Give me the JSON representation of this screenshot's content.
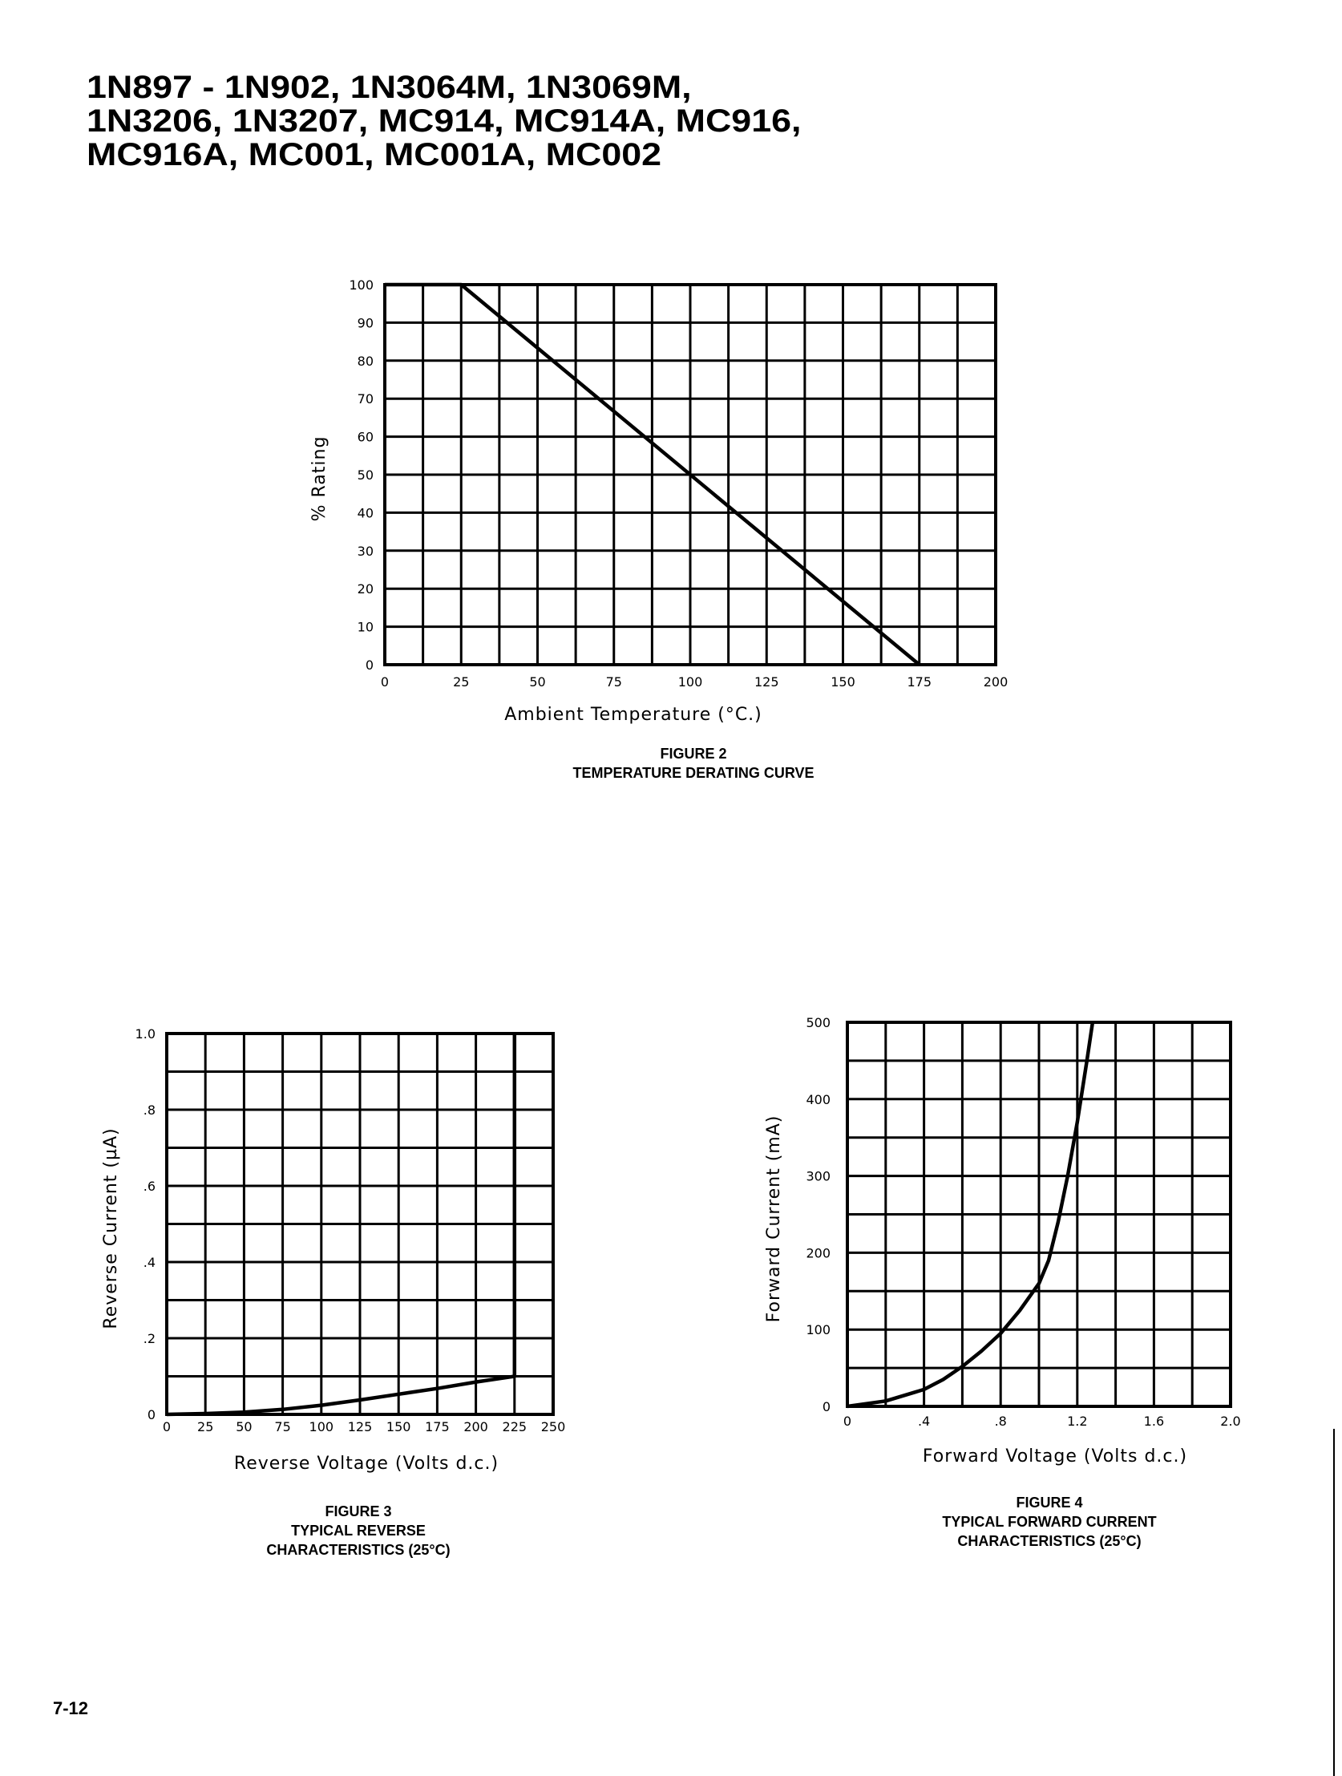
{
  "header": {
    "title_lines": [
      "1N897 - 1N902, 1N3064M, 1N3069M,",
      "1N3206, 1N3207, MC914, MC914A, MC916,",
      "MC916A, MC001, MC001A, MC002"
    ]
  },
  "figures": [
    {
      "figure_label": "FIGURE 2",
      "caption_lines": [
        "TEMPERATURE DERATING CURVE"
      ]
    },
    {
      "figure_label": "FIGURE 3",
      "caption_lines": [
        "TYPICAL REVERSE",
        "CHARACTERISTICS (25°C)"
      ]
    },
    {
      "figure_label": "FIGURE 4",
      "caption_lines": [
        "TYPICAL FORWARD CURRENT",
        "CHARACTERISTICS (25°C)"
      ]
    }
  ],
  "chart_data": [
    {
      "type": "line",
      "title": "TEMPERATURE DERATING CURVE",
      "xlabel": "Ambient Temperature (°C.)",
      "ylabel": "% Rating",
      "xlim": [
        0,
        200
      ],
      "ylim": [
        0,
        100
      ],
      "x_ticks": [
        0,
        25,
        50,
        75,
        100,
        125,
        150,
        175,
        200
      ],
      "x_tick_labels": [
        "0",
        "25",
        "50",
        "75",
        "100",
        "125",
        "150",
        "175",
        "200"
      ],
      "y_ticks": [
        0,
        10,
        20,
        30,
        40,
        50,
        60,
        70,
        80,
        90,
        100
      ],
      "y_tick_labels": [
        "0",
        "10",
        "20",
        "30",
        "40",
        "50",
        "60",
        "70",
        "80",
        "90",
        "100"
      ],
      "grid_x": 16,
      "grid_y": 10,
      "grid": true,
      "series": [
        {
          "name": "% Rating",
          "x": [
            0,
            25,
            175
          ],
          "y": [
            100,
            100,
            0
          ]
        }
      ]
    },
    {
      "type": "line",
      "title": "TYPICAL REVERSE CHARACTERISTICS (25°C)",
      "xlabel": "Reverse Voltage (Volts d.c.)",
      "ylabel": "Reverse Current (µA)",
      "xlim": [
        0,
        250
      ],
      "ylim": [
        0,
        1.0
      ],
      "x_ticks": [
        0,
        25,
        50,
        75,
        100,
        125,
        150,
        175,
        200,
        225,
        250
      ],
      "x_tick_labels": [
        "0",
        "25",
        "50",
        "75",
        "100",
        "125",
        "150",
        "175",
        "200",
        "225",
        "250"
      ],
      "y_ticks": [
        0,
        0.2,
        0.4,
        0.6,
        0.8,
        1.0
      ],
      "y_tick_labels": [
        "0",
        ".2",
        ".4",
        ".6",
        ".8",
        "1.0"
      ],
      "grid_x": 10,
      "grid_y": 10,
      "grid": true,
      "series": [
        {
          "name": "Reverse Current",
          "x": [
            0,
            25,
            50,
            75,
            100,
            125,
            150,
            175,
            200,
            225,
            225
          ],
          "y": [
            0,
            0.002,
            0.006,
            0.013,
            0.024,
            0.038,
            0.053,
            0.068,
            0.085,
            0.1,
            1.0
          ]
        }
      ]
    },
    {
      "type": "line",
      "title": "TYPICAL FORWARD CURRENT CHARACTERISTICS (25°C)",
      "xlabel": "Forward Voltage (Volts d.c.)",
      "ylabel": "Forward Current (mA)",
      "xlim": [
        0,
        2.0
      ],
      "ylim": [
        0,
        500
      ],
      "x_ticks": [
        0,
        0.4,
        0.8,
        1.2,
        1.6,
        2.0
      ],
      "x_tick_labels": [
        "0",
        ".4",
        ".8",
        "1.2",
        "1.6",
        "2.0"
      ],
      "y_ticks": [
        0,
        100,
        200,
        300,
        400,
        500
      ],
      "y_tick_labels": [
        "0",
        "100",
        "200",
        "300",
        "400",
        "500"
      ],
      "grid_x": 10,
      "grid_y": 10,
      "grid": true,
      "series": [
        {
          "name": "Forward Current",
          "x": [
            0,
            0.2,
            0.4,
            0.5,
            0.6,
            0.7,
            0.8,
            0.9,
            1.0,
            1.05,
            1.1,
            1.15,
            1.2,
            1.25,
            1.28
          ],
          "y": [
            0,
            7,
            22,
            35,
            52,
            72,
            95,
            125,
            160,
            190,
            240,
            300,
            370,
            450,
            500
          ]
        }
      ]
    }
  ]
}
